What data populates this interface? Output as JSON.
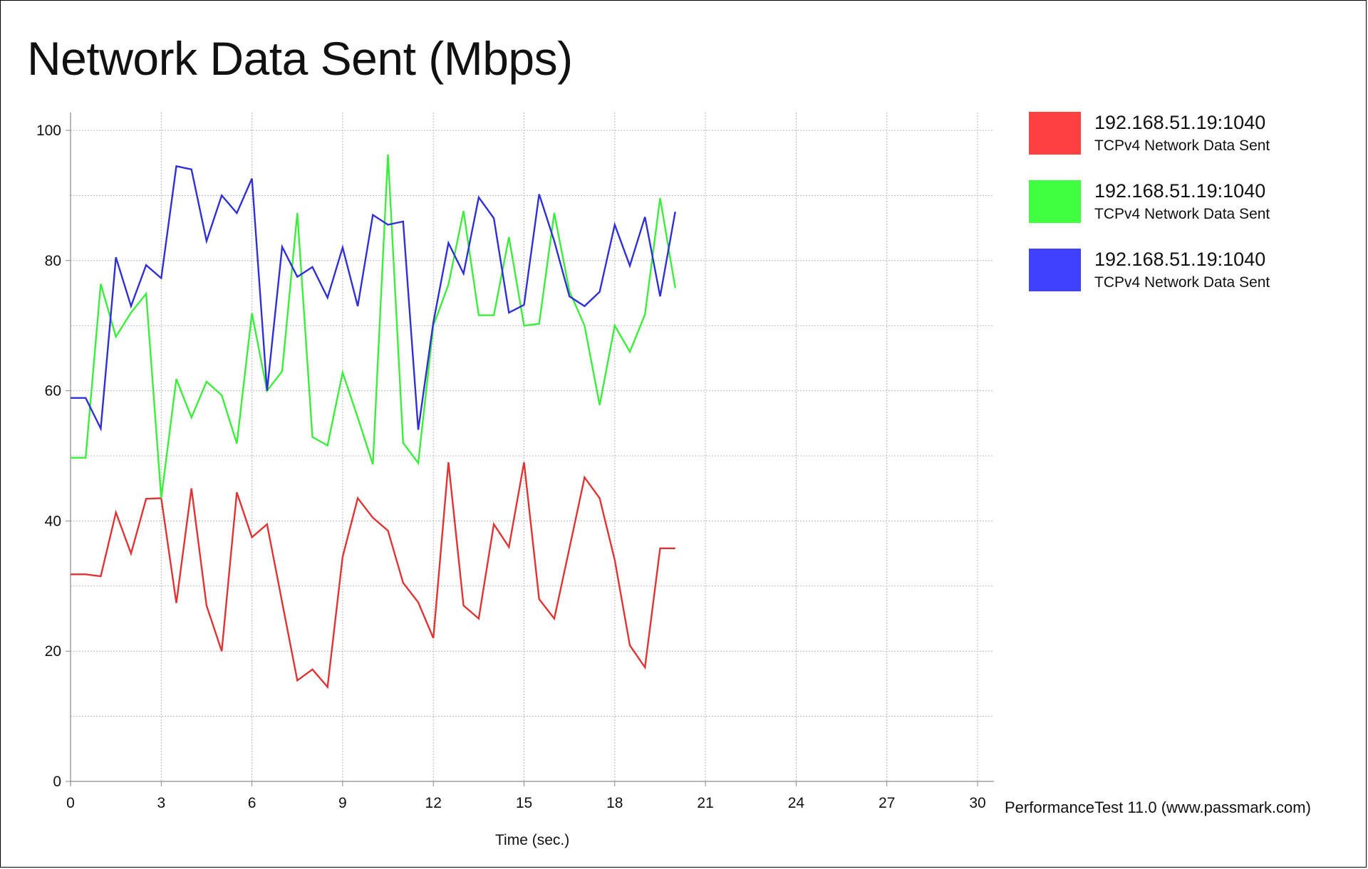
{
  "chart_data": {
    "type": "line",
    "title": "Network Data Sent (Mbps)",
    "xlabel": "Time (sec.)",
    "ylabel": "",
    "xlim": [
      0,
      30
    ],
    "ylim": [
      0,
      100
    ],
    "x_ticks": [
      0,
      3,
      6,
      9,
      12,
      15,
      18,
      21,
      24,
      27,
      30
    ],
    "y_ticks": [
      0,
      20,
      40,
      60,
      80,
      100
    ],
    "grid": true,
    "legend_position": "right",
    "x": [
      0,
      0.5,
      1,
      1.5,
      2,
      2.5,
      3,
      3.5,
      4,
      4.5,
      5,
      5.5,
      6,
      6.5,
      7,
      7.5,
      8,
      8.5,
      9,
      9.5,
      10,
      10.5,
      11,
      11.5,
      12,
      12.5,
      13,
      13.5,
      14,
      14.5,
      15,
      15.5,
      16,
      16.5,
      17,
      17.5,
      18,
      18.5,
      19,
      19.5,
      20
    ],
    "series": [
      {
        "name": "192.168.51.19:1040",
        "subtitle": "TCPv4 Network Data Sent",
        "color": "#ff4040",
        "values": [
          31.8,
          31.8,
          31.5,
          41.3,
          35.0,
          43.4,
          43.5,
          27.4,
          45.0,
          27.0,
          20.0,
          44.4,
          37.5,
          39.5,
          27.5,
          15.5,
          17.2,
          14.5,
          34.5,
          43.5,
          40.5,
          38.5,
          30.5,
          27.5,
          22.0,
          49.0,
          27.0,
          25.0,
          39.5,
          36.0,
          49.0,
          28.0,
          25.0,
          35.8,
          46.7,
          43.5,
          34.0,
          20.9,
          17.5,
          35.8,
          35.8
        ]
      },
      {
        "name": "192.168.51.19:1040",
        "subtitle": "TCPv4 Network Data Sent",
        "color": "#40ff40",
        "values": [
          49.7,
          49.7,
          76.4,
          68.3,
          72.0,
          74.9,
          43.5,
          61.8,
          55.9,
          61.4,
          59.3,
          51.9,
          71.9,
          60.0,
          63.0,
          87.3,
          52.9,
          51.6,
          62.8,
          55.9,
          48.7,
          96.3,
          52.0,
          48.9,
          70.0,
          76.3,
          87.6,
          71.6,
          71.6,
          83.6,
          70.0,
          70.3,
          87.3,
          75.3,
          70.0,
          57.8,
          70.0,
          66.0,
          71.7,
          89.6,
          75.8
        ]
      },
      {
        "name": "192.168.51.19:1040",
        "subtitle": "TCPv4 Network Data Sent",
        "color": "#4040ff",
        "values": [
          58.9,
          58.9,
          54.2,
          80.5,
          73.0,
          79.3,
          77.3,
          94.5,
          94.0,
          83.0,
          90.0,
          87.3,
          92.6,
          60.0,
          82.1,
          77.5,
          79.0,
          74.3,
          82.0,
          73.0,
          87.0,
          85.5,
          86.0,
          54.0,
          70.5,
          82.7,
          78.0,
          89.7,
          86.5,
          72.0,
          73.2,
          90.2,
          83.0,
          74.5,
          73.0,
          75.2,
          85.5,
          79.2,
          86.7,
          74.5,
          87.5
        ]
      }
    ]
  },
  "footer": {
    "watermark": "PerformanceTest 11.0 (www.passmark.com)"
  }
}
